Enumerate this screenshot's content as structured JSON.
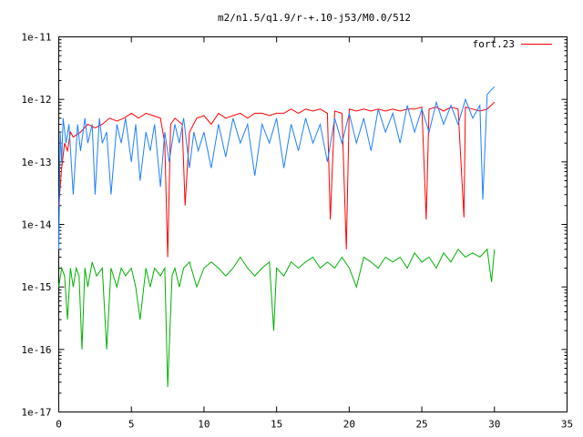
{
  "chart_data": {
    "type": "line",
    "title": "m2/n1.5/q1.9/r-+.10-j53/M0.0/512",
    "xlabel": "",
    "ylabel": "",
    "xlim": [
      0,
      35
    ],
    "ylim": [
      1e-17,
      1e-11
    ],
    "yscale": "log",
    "grid": false,
    "legend_position": "top-right",
    "x_ticks": [
      0,
      5,
      10,
      15,
      20,
      25,
      30,
      35
    ],
    "x_tick_labels": [
      "0",
      "5",
      "10",
      "15",
      "20",
      "25",
      "30",
      "35"
    ],
    "y_ticks": [
      1e-17,
      1e-16,
      1e-15,
      1e-14,
      1e-13,
      1e-12,
      1e-11
    ],
    "y_tick_labels": [
      "1e-17",
      "1e-16",
      "1e-15",
      "1e-14",
      "1e-13",
      "1e-12",
      "1e-11"
    ],
    "series": [
      {
        "name": "fort.23",
        "color": "#ff0000",
        "x": [
          0.0,
          0.2,
          0.4,
          0.6,
          0.8,
          1.0,
          1.5,
          2.0,
          2.5,
          3.0,
          3.5,
          4.0,
          4.5,
          5.0,
          5.5,
          6.0,
          6.5,
          7.0,
          7.3,
          7.5,
          7.7,
          8.0,
          8.5,
          8.7,
          9.0,
          9.5,
          10.0,
          10.5,
          11.0,
          11.5,
          12.0,
          12.5,
          13.0,
          13.5,
          14.0,
          14.5,
          15.0,
          15.5,
          16.0,
          16.5,
          17.0,
          17.5,
          18.0,
          18.5,
          18.7,
          19.0,
          19.5,
          19.8,
          20.0,
          20.5,
          21.0,
          21.5,
          22.0,
          22.5,
          23.0,
          23.5,
          24.0,
          24.5,
          25.0,
          25.3,
          25.5,
          26.0,
          26.5,
          27.0,
          27.5,
          27.9,
          28.0,
          28.5,
          29.0,
          29.5,
          30.0
        ],
        "values": [
          2e-14,
          8e-14,
          2e-13,
          1.5e-13,
          3e-13,
          2.5e-13,
          3e-13,
          4e-13,
          3.5e-13,
          4e-13,
          5e-13,
          4.5e-13,
          5e-13,
          6e-13,
          5e-13,
          6e-13,
          5.5e-13,
          5e-13,
          2e-13,
          3e-15,
          4e-13,
          5e-13,
          4e-13,
          2e-14,
          3e-13,
          5e-13,
          5.5e-13,
          4e-13,
          6e-13,
          5e-13,
          5.5e-13,
          6e-13,
          5e-13,
          6e-13,
          6e-13,
          5.5e-13,
          6e-13,
          6e-13,
          7e-13,
          6e-13,
          7e-13,
          6.5e-13,
          7e-13,
          6e-13,
          1.2e-14,
          6.5e-13,
          6e-13,
          4e-15,
          7e-13,
          6.5e-13,
          7e-13,
          6.5e-13,
          7e-13,
          6.5e-13,
          7e-13,
          6.5e-13,
          7e-13,
          7e-13,
          7.5e-13,
          1.2e-14,
          7e-13,
          7.5e-13,
          6.5e-13,
          7.5e-13,
          7e-13,
          1.3e-14,
          7.5e-13,
          7e-13,
          6.5e-13,
          7e-13,
          9e-13
        ]
      },
      {
        "name": "",
        "color": "#1f7fff",
        "x": [
          0.0,
          0.1,
          0.2,
          0.3,
          0.5,
          0.7,
          1.0,
          1.3,
          1.5,
          1.8,
          2.0,
          2.3,
          2.5,
          2.8,
          3.0,
          3.3,
          3.6,
          4.0,
          4.3,
          4.6,
          5.0,
          5.3,
          5.6,
          6.0,
          6.3,
          6.6,
          7.0,
          7.3,
          7.6,
          8.0,
          8.3,
          8.6,
          9.0,
          9.3,
          9.6,
          10.0,
          10.5,
          11.0,
          11.5,
          12.0,
          12.5,
          13.0,
          13.5,
          14.0,
          14.5,
          15.0,
          15.5,
          16.0,
          16.5,
          17.0,
          17.5,
          18.0,
          18.5,
          19.0,
          19.5,
          20.0,
          20.5,
          21.0,
          21.5,
          22.0,
          22.5,
          23.0,
          23.5,
          24.0,
          24.5,
          25.0,
          25.5,
          26.0,
          26.5,
          27.0,
          27.5,
          28.0,
          28.5,
          29.0,
          29.2,
          29.5,
          30.0
        ],
        "values": [
          4e-15,
          3e-13,
          1e-13,
          5e-13,
          2e-13,
          4e-13,
          3e-14,
          4e-13,
          1.5e-13,
          5e-13,
          2e-13,
          4e-13,
          3e-14,
          5e-13,
          2e-13,
          3e-13,
          3e-14,
          4e-13,
          2e-13,
          5e-13,
          1e-13,
          4e-13,
          5e-14,
          3e-13,
          1.5e-13,
          4e-13,
          4e-14,
          3e-13,
          1e-13,
          4e-13,
          2e-13,
          5e-13,
          8e-14,
          3e-13,
          1.5e-13,
          3e-13,
          8e-14,
          4e-13,
          1.2e-13,
          5e-13,
          2e-13,
          4e-13,
          6e-14,
          4e-13,
          2e-13,
          5e-13,
          8e-14,
          4e-13,
          1.5e-13,
          5e-13,
          2e-13,
          4e-13,
          1e-13,
          5e-13,
          2e-13,
          6e-13,
          2e-13,
          5e-13,
          1.5e-13,
          7e-13,
          3e-13,
          6e-13,
          2e-13,
          8e-13,
          3e-13,
          7e-13,
          3e-13,
          9e-13,
          4e-13,
          8e-13,
          4e-13,
          1e-12,
          5e-13,
          8e-13,
          2.5e-14,
          1.2e-12,
          1.6e-12
        ]
      },
      {
        "name": "",
        "color": "#00b000",
        "x": [
          0.0,
          0.2,
          0.4,
          0.6,
          0.8,
          1.0,
          1.2,
          1.4,
          1.6,
          1.8,
          2.0,
          2.3,
          2.6,
          3.0,
          3.3,
          3.6,
          4.0,
          4.3,
          4.6,
          5.0,
          5.3,
          5.6,
          6.0,
          6.3,
          6.6,
          7.0,
          7.3,
          7.5,
          7.8,
          8.0,
          8.3,
          8.6,
          9.0,
          9.5,
          10.0,
          10.5,
          11.0,
          11.5,
          12.0,
          12.5,
          13.0,
          13.5,
          14.0,
          14.5,
          14.8,
          15.0,
          15.5,
          16.0,
          16.5,
          17.0,
          17.5,
          18.0,
          18.5,
          19.0,
          19.5,
          20.0,
          20.5,
          21.0,
          21.5,
          22.0,
          22.5,
          23.0,
          23.5,
          24.0,
          24.5,
          25.0,
          25.5,
          26.0,
          26.5,
          27.0,
          27.5,
          28.0,
          28.5,
          29.0,
          29.5,
          29.8,
          30.0
        ],
        "values": [
          1e-15,
          2e-15,
          1.5e-15,
          3e-16,
          2e-15,
          1e-15,
          2e-15,
          1.5e-15,
          1e-16,
          2e-15,
          1e-15,
          2.5e-15,
          1.5e-15,
          2e-15,
          1e-16,
          2e-15,
          1e-15,
          2e-15,
          1.5e-15,
          2e-15,
          1e-15,
          3e-16,
          2e-15,
          1e-15,
          2e-15,
          1.5e-15,
          2e-15,
          2.5e-17,
          1.5e-15,
          2e-15,
          1e-15,
          2e-15,
          2.5e-15,
          1e-15,
          2e-15,
          2.5e-15,
          2e-15,
          1.5e-15,
          2e-15,
          3e-15,
          2e-15,
          1.5e-15,
          2e-15,
          2.5e-15,
          2e-16,
          2e-15,
          1.5e-15,
          2.5e-15,
          2e-15,
          2.5e-15,
          3e-15,
          2e-15,
          2.5e-15,
          2e-15,
          3e-15,
          2e-15,
          1e-15,
          3e-15,
          2.5e-15,
          2e-15,
          3e-15,
          2.5e-15,
          3e-15,
          2e-15,
          3.5e-15,
          2.5e-15,
          3e-15,
          2e-15,
          3.5e-15,
          2.5e-15,
          4e-15,
          3e-15,
          3.5e-15,
          3e-15,
          4e-15,
          1.2e-15,
          4e-15
        ]
      }
    ]
  }
}
